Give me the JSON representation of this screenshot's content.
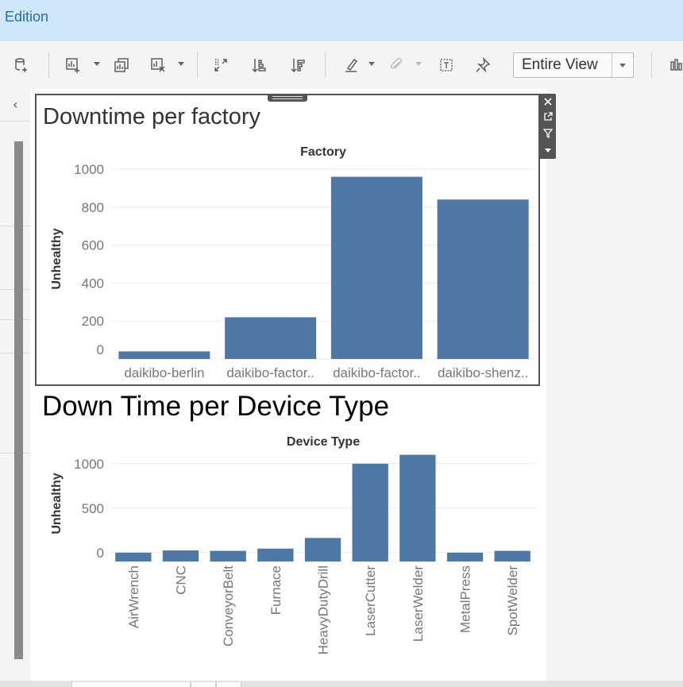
{
  "app": {
    "title_fragment": "Edition"
  },
  "toolbar": {
    "view_select": "Entire View",
    "icons": [
      "new-data-source-icon",
      "new-worksheet-icon",
      "duplicate-sheet-icon",
      "clear-sheet-icon",
      "swap-rows-columns-icon",
      "sort-ascending-icon",
      "sort-descending-icon",
      "highlight-icon",
      "group-members-icon",
      "show-labels-icon",
      "pin-axes-icon",
      "show-me-icon"
    ]
  },
  "sidebar": {
    "collapse_glyph": "‹"
  },
  "worksheets": [
    {
      "title": "Downtime per factory",
      "chart_data": {
        "type": "bar",
        "title": "Downtime per factory",
        "header": "Factory",
        "xlabel": "Factory",
        "ylabel": "Unhealthy",
        "categories": [
          "daikibo-berlin",
          "daikibo-factor..",
          "daikibo-factor..",
          "daikibo-shenz.."
        ],
        "values": [
          40,
          220,
          960,
          840
        ],
        "ylim": [
          0,
          1000
        ],
        "yticks": [
          "1000",
          "800",
          "600",
          "400",
          "200",
          "0"
        ],
        "grid": true,
        "color": "#4e79a7"
      }
    },
    {
      "title": "Down Time per Device Type",
      "chart_data": {
        "type": "bar",
        "title": "Down Time per Device Type",
        "header": "Device Type",
        "xlabel": "Device Type",
        "ylabel": "Unhealthy",
        "categories": [
          "AirWrench",
          "CNC",
          "ConveyorBelt",
          "Furnace",
          "HeavyDutyDrill",
          "LaserCutter",
          "LaserWelder",
          "MetalPress",
          "SpotWelder"
        ],
        "values": [
          0,
          25,
          20,
          45,
          165,
          1000,
          1100,
          0,
          20
        ],
        "ylim": [
          -100,
          1150
        ],
        "yticks": [
          "1000",
          "500",
          "0"
        ],
        "grid": true,
        "color": "#4e79a7"
      }
    }
  ],
  "colors": {
    "accent_bar": "#4e79a7",
    "top_banner": "#cfe7fb",
    "title_link": "#2a6bab"
  }
}
